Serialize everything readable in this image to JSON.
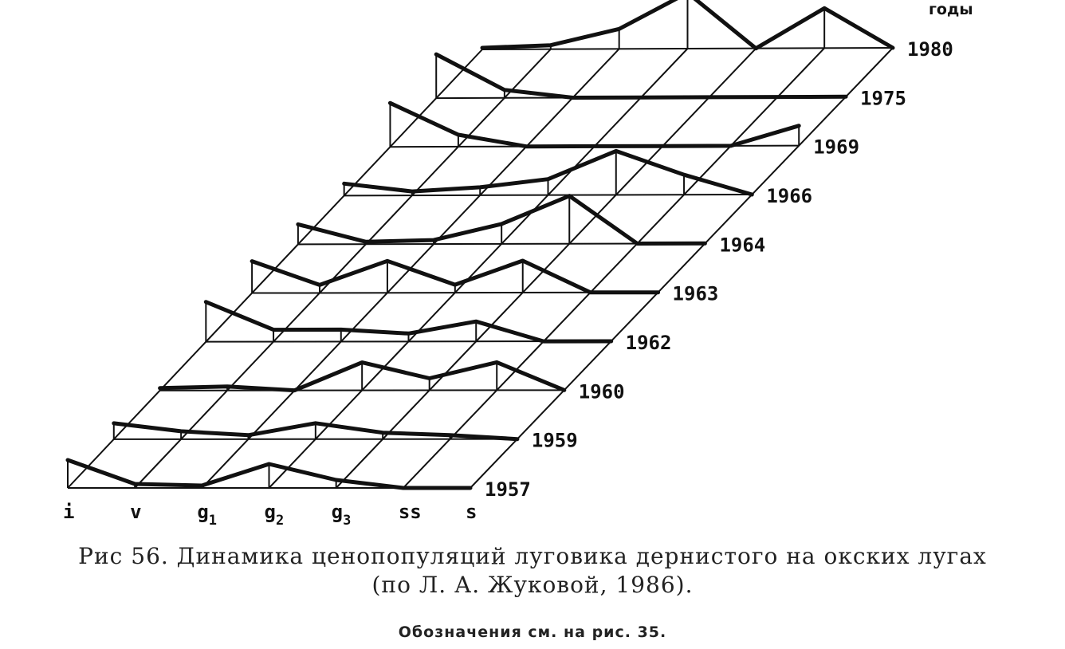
{
  "chart_data": {
    "type": "area",
    "projection": "3d-stacked-profiles",
    "axis_title_years": "годы",
    "categories": [
      "i",
      "v",
      "g1",
      "g2",
      "g3",
      "ss",
      "s"
    ],
    "category_labels": [
      {
        "main": "i",
        "sub": ""
      },
      {
        "main": "v",
        "sub": ""
      },
      {
        "main": "g",
        "sub": "1"
      },
      {
        "main": "g",
        "sub": "2"
      },
      {
        "main": "g",
        "sub": "3"
      },
      {
        "main": "ss",
        "sub": ""
      },
      {
        "main": "s",
        "sub": ""
      }
    ],
    "series": [
      {
        "name": "1957",
        "values": [
          35,
          5,
          3,
          30,
          10,
          0,
          0
        ]
      },
      {
        "name": "1959",
        "values": [
          20,
          10,
          5,
          20,
          8,
          5,
          0
        ]
      },
      {
        "name": "1960",
        "values": [
          3,
          5,
          0,
          35,
          15,
          35,
          0
        ]
      },
      {
        "name": "1962",
        "values": [
          50,
          15,
          15,
          10,
          25,
          0,
          0
        ]
      },
      {
        "name": "1963",
        "values": [
          40,
          10,
          40,
          10,
          40,
          0,
          0
        ]
      },
      {
        "name": "1964",
        "values": [
          25,
          3,
          5,
          25,
          60,
          0,
          0
        ]
      },
      {
        "name": "1966",
        "values": [
          15,
          5,
          10,
          20,
          55,
          25,
          0
        ]
      },
      {
        "name": "1969",
        "values": [
          55,
          15,
          0,
          0,
          0,
          0,
          25
        ]
      },
      {
        "name": "1975",
        "values": [
          55,
          10,
          0,
          0,
          0,
          0,
          0
        ]
      },
      {
        "name": "1980",
        "values": [
          2,
          5,
          25,
          70,
          0,
          50,
          0
        ]
      }
    ],
    "grid": true,
    "legend": "none"
  },
  "caption": {
    "line1": "Рис  56. Динамика  ценопопуляций  луговика  дернистого  на  окских  лугах",
    "line2": "(по  Л.  А.  Жуковой,  1986).",
    "note": "Обозначения  см.  на  рис.  35."
  }
}
